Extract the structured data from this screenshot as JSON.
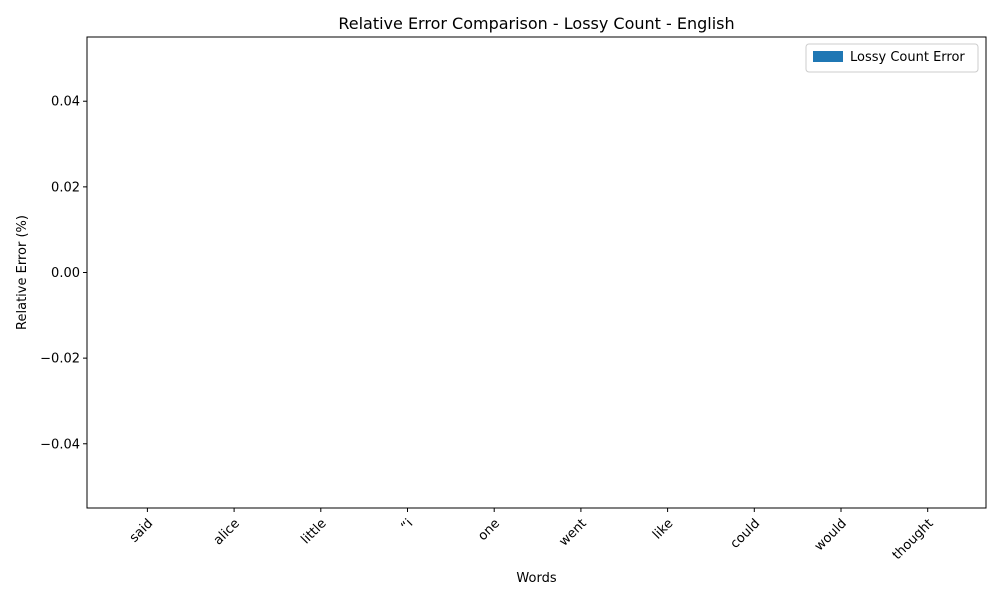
{
  "chart_data": {
    "type": "bar",
    "title": "Relative Error Comparison - Lossy Count - English",
    "xlabel": "Words",
    "ylabel": "Relative Error (%)",
    "categories": [
      "said",
      "alice",
      "little",
      "“i",
      "one",
      "went",
      "like",
      "could",
      "would",
      "thought"
    ],
    "series": [
      {
        "name": "Lossy Count Error",
        "color": "#1f77b4",
        "values": [
          0,
          0,
          0,
          0,
          0,
          0,
          0,
          0,
          0,
          0
        ]
      }
    ],
    "ylim": [
      -0.055,
      0.055
    ],
    "yticks": [
      -0.04,
      -0.02,
      0.0,
      0.02,
      0.04
    ],
    "ytick_labels": [
      "−0.04",
      "−0.02",
      "0.00",
      "0.02",
      "0.04"
    ],
    "xtick_rotation": 45,
    "legend_position": "top-right",
    "grid": false
  }
}
